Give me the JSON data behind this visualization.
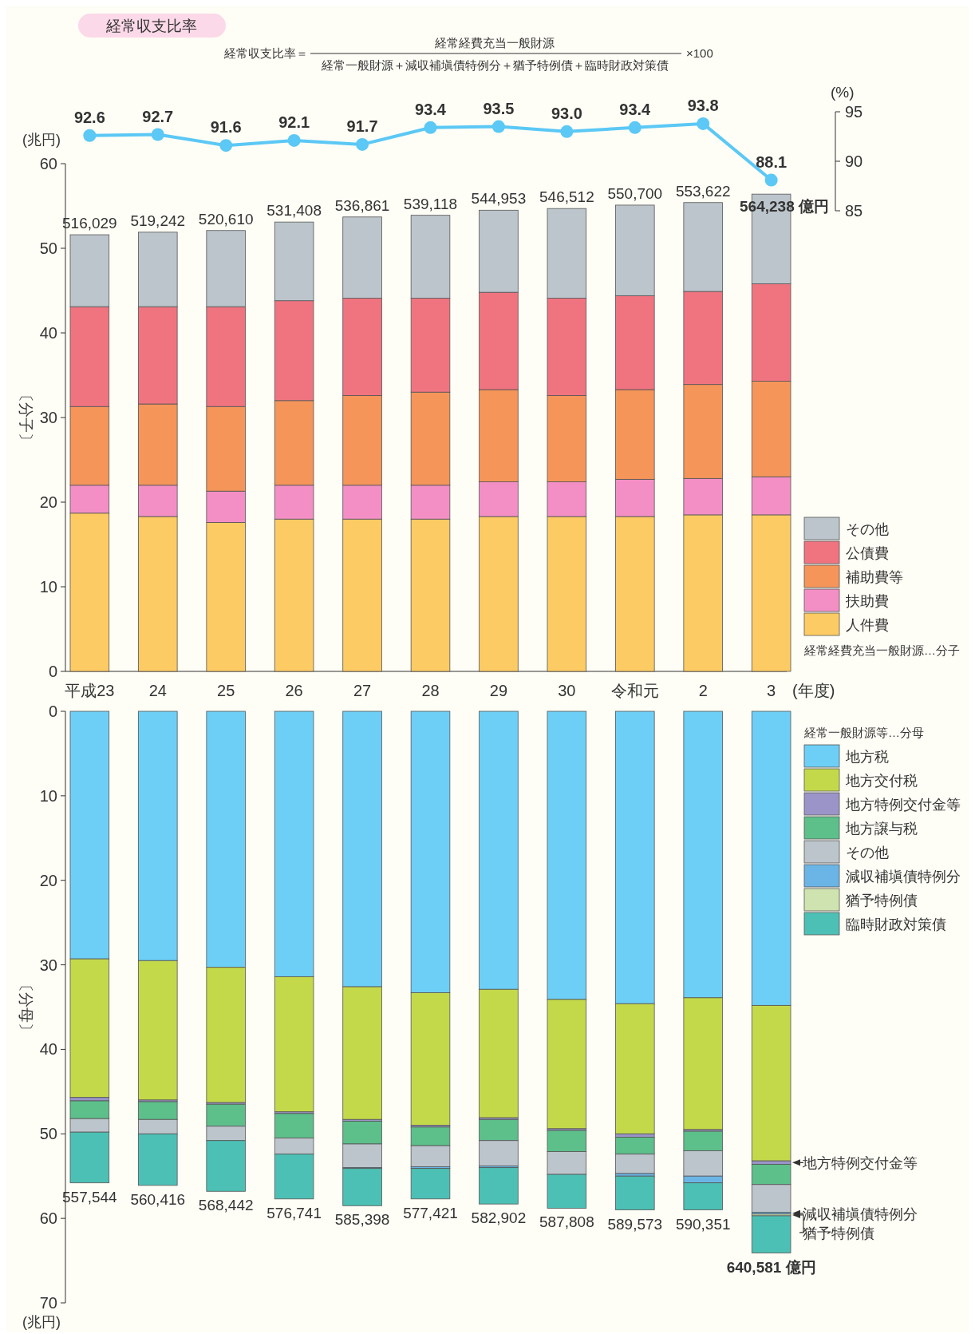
{
  "chart_data": [
    {
      "type": "line",
      "title": "経常収支比率",
      "annotations": [
        "経常収支比率＝",
        "経常経費充当一般財源",
        "経常一般財源＋減収補塡債特例分＋猶予特例債＋臨時財政対策債",
        "×100"
      ],
      "categories": [
        "平成23",
        "24",
        "25",
        "26",
        "27",
        "28",
        "29",
        "30",
        "令和元",
        "2",
        "3"
      ],
      "series": [
        {
          "color": "#5bc8f5",
          "values": [
            92.6,
            92.7,
            91.6,
            92.1,
            91.7,
            93.4,
            93.5,
            93.0,
            93.4,
            93.8,
            88.1
          ],
          "value_labels": [
            "92.6",
            "92.7",
            "91.6",
            "92.1",
            "91.7",
            "93.4",
            "93.5",
            "93.0",
            "93.4",
            "93.8",
            "88.1"
          ]
        }
      ],
      "ylim": [
        85,
        95
      ],
      "yticks": [
        85,
        90,
        95
      ],
      "ylabel": "(%)",
      "marker": "circle",
      "tick_labels": "y"
    },
    {
      "type": "bar",
      "stacked": true,
      "categories": [
        "平成23",
        "24",
        "25",
        "26",
        "27",
        "28",
        "29",
        "30",
        "令和元",
        "2",
        "3"
      ],
      "series": [
        {
          "name": "人件費",
          "color": "#fdcb63",
          "values": [
            18.7,
            18.3,
            17.6,
            18.0,
            18.0,
            18.0,
            18.3,
            18.3,
            18.3,
            18.5,
            18.5
          ]
        },
        {
          "name": "扶助費",
          "color": "#f48fc5",
          "values": [
            3.3,
            3.7,
            3.7,
            4.0,
            4.0,
            4.0,
            4.1,
            4.1,
            4.4,
            4.3,
            4.5
          ]
        },
        {
          "name": "補助費等",
          "color": "#f5955a",
          "values": [
            9.3,
            9.6,
            10.0,
            10.0,
            10.6,
            11.0,
            10.9,
            10.2,
            10.6,
            11.1,
            11.3
          ]
        },
        {
          "name": "公債費",
          "color": "#f07480",
          "values": [
            11.8,
            11.5,
            11.8,
            11.8,
            11.5,
            11.1,
            11.5,
            11.5,
            11.1,
            11.0,
            11.5
          ]
        },
        {
          "name": "その他",
          "color": "#bcc5cc",
          "values": [
            8.5,
            8.8,
            9.0,
            9.3,
            9.6,
            9.8,
            9.7,
            10.6,
            10.7,
            10.5,
            10.6
          ]
        }
      ],
      "ylim": [
        0,
        60
      ],
      "yticks": [
        0,
        10,
        20,
        30,
        40,
        50,
        60
      ],
      "ylabel": "〔分子〕",
      "xlabel": "(年度)",
      "legend": "right",
      "annotations": [
        "(兆円)",
        "経常経費充当一般財源…分子",
        {
          "text": "516,029",
          "x": "平成23",
          "y": 51.6
        },
        {
          "text": "519,242",
          "x": "24",
          "y": 51.9
        },
        {
          "text": "520,610",
          "x": "25",
          "y": 52.1
        },
        {
          "text": "531,408",
          "x": "26",
          "y": 53.1
        },
        {
          "text": "536,861",
          "x": "27",
          "y": 53.7
        },
        {
          "text": "539,118",
          "x": "28",
          "y": 53.9
        },
        {
          "text": "544,953",
          "x": "29",
          "y": 54.5
        },
        {
          "text": "546,512",
          "x": "30",
          "y": 54.7
        },
        {
          "text": "550,700",
          "x": "令和元",
          "y": 55.1
        },
        {
          "text": "553,622",
          "x": "2",
          "y": 55.4
        },
        {
          "text": "564,238 億円",
          "x": "3",
          "y": 56.4
        }
      ]
    },
    {
      "type": "bar",
      "stacked": true,
      "categories": [
        "平成23",
        "24",
        "25",
        "26",
        "27",
        "28",
        "29",
        "30",
        "令和元",
        "2",
        "3"
      ],
      "series": [
        {
          "name": "地方税",
          "color": "#6dcff6",
          "values": [
            29.3,
            29.5,
            30.3,
            31.4,
            32.6,
            33.3,
            32.9,
            34.1,
            34.6,
            33.9,
            34.8
          ]
        },
        {
          "name": "地方交付税",
          "color": "#c4d94a",
          "values": [
            16.4,
            16.5,
            16.0,
            16.0,
            15.7,
            15.7,
            15.2,
            15.3,
            15.4,
            15.6,
            18.4
          ]
        },
        {
          "name": "地方特例交付金等",
          "color": "#9b94c8",
          "values": [
            0.4,
            0.2,
            0.2,
            0.2,
            0.2,
            0.2,
            0.2,
            0.2,
            0.4,
            0.2,
            0.4
          ]
        },
        {
          "name": "地方譲与税",
          "color": "#5dbf8a",
          "values": [
            2.1,
            2.1,
            2.6,
            2.9,
            2.7,
            2.2,
            2.5,
            2.5,
            2.0,
            2.3,
            2.4
          ]
        },
        {
          "name": "その他",
          "color": "#bcc5cc",
          "values": [
            1.6,
            1.7,
            1.7,
            1.9,
            2.8,
            2.5,
            3.0,
            2.7,
            2.3,
            3.0,
            3.3
          ]
        },
        {
          "name": "減収補塡債特例分",
          "color": "#6ab4e6",
          "values": [
            0,
            0,
            0,
            0,
            0.1,
            0.2,
            0.2,
            0,
            0.3,
            0.8,
            0.2
          ]
        },
        {
          "name": "猶予特例債",
          "color": "#cfe3b0",
          "values": [
            0,
            0,
            0,
            0,
            0,
            0,
            0,
            0,
            0,
            0,
            0.2
          ]
        },
        {
          "name": "臨時財政対策債",
          "color": "#4dc0b5",
          "values": [
            6.0,
            6.1,
            6.0,
            5.3,
            4.4,
            3.6,
            4.3,
            4.0,
            4.0,
            3.2,
            4.4
          ]
        }
      ],
      "ylim": [
        70,
        0
      ],
      "yticks": [
        0,
        10,
        20,
        30,
        40,
        50,
        60,
        70
      ],
      "ylabel": "〔分母〕",
      "legend": "right",
      "legend_title": "経常一般財源等…分母",
      "tick_labels": "y",
      "annotations": [
        "(兆円)",
        {
          "text": "地方特例交付金等",
          "x": "3",
          "y": 53.4
        },
        {
          "text": "減収補塡債特例分",
          "x": "3",
          "y": 59.4
        },
        {
          "text": "猶予特例債",
          "x": "3",
          "y": 59.6
        },
        {
          "text": "557,544",
          "x": "平成23",
          "y": 55.8
        },
        {
          "text": "560,416",
          "x": "24",
          "y": 56.1
        },
        {
          "text": "568,442",
          "x": "25",
          "y": 56.8
        },
        {
          "text": "576,741",
          "x": "26",
          "y": 57.7
        },
        {
          "text": "585,398",
          "x": "27",
          "y": 58.5
        },
        {
          "text": "577,421",
          "x": "28",
          "y": 57.7
        },
        {
          "text": "582,902",
          "x": "29",
          "y": 58.3
        },
        {
          "text": "587,808",
          "x": "30",
          "y": 58.8
        },
        {
          "text": "589,573",
          "x": "令和元",
          "y": 59.0
        },
        {
          "text": "590,351",
          "x": "2",
          "y": 59.0
        },
        {
          "text": "640,581 億円",
          "x": "3",
          "y": 64.1
        }
      ]
    }
  ]
}
